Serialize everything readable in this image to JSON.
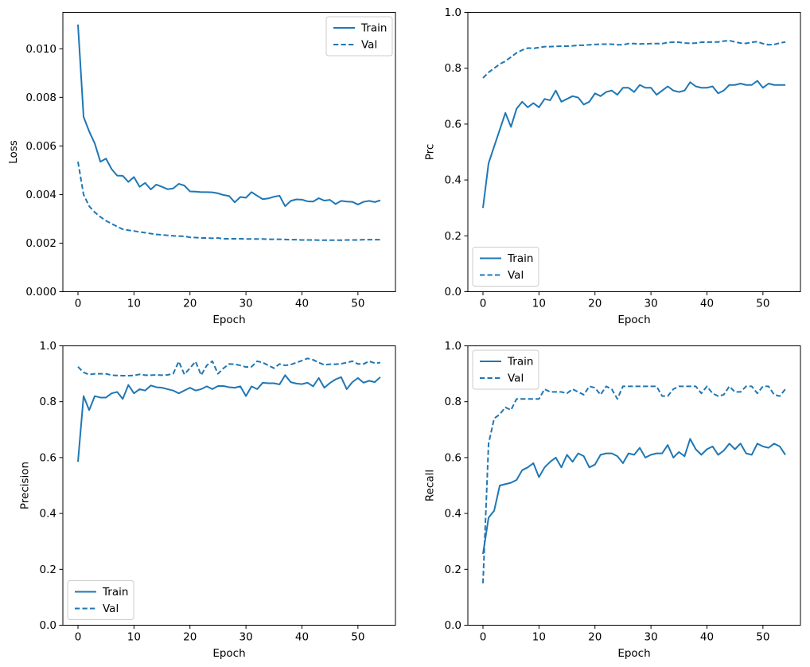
{
  "figure": {
    "background": "#ffffff",
    "line_color": "#1f77b4",
    "text_color": "#000000",
    "legend_labels": [
      "Train",
      "Val"
    ]
  },
  "epochs": [
    0,
    1,
    2,
    3,
    4,
    5,
    6,
    7,
    8,
    9,
    10,
    11,
    12,
    13,
    14,
    15,
    16,
    17,
    18,
    19,
    20,
    21,
    22,
    23,
    24,
    25,
    26,
    27,
    28,
    29,
    30,
    31,
    32,
    33,
    34,
    35,
    36,
    37,
    38,
    39,
    40,
    41,
    42,
    43,
    44,
    45,
    46,
    47,
    48,
    49,
    50,
    51,
    52,
    53,
    54
  ],
  "chart_data": [
    {
      "type": "line",
      "title": "",
      "xlabel": "Epoch",
      "ylabel": "Loss",
      "xlim": [
        -2.7,
        56.7
      ],
      "ylim": [
        0,
        0.0115
      ],
      "grid": false,
      "xticks": [
        0,
        10,
        20,
        30,
        40,
        50
      ],
      "xtick_labels": [
        "0",
        "10",
        "20",
        "30",
        "40",
        "50"
      ],
      "yticks": [
        0.0,
        0.002,
        0.004,
        0.006,
        0.008,
        0.01
      ],
      "ytick_labels": [
        "0.000",
        "0.002",
        "0.004",
        "0.006",
        "0.008",
        "0.010"
      ],
      "legend_position": "upper-right",
      "series": [
        {
          "name": "Train",
          "style": "solid",
          "values": [
            0.011,
            0.0072,
            0.0066,
            0.0061,
            0.00535,
            0.00548,
            0.00505,
            0.00478,
            0.00477,
            0.00452,
            0.00472,
            0.00432,
            0.00448,
            0.00421,
            0.00441,
            0.00432,
            0.00422,
            0.00425,
            0.00444,
            0.00437,
            0.00413,
            0.00412,
            0.0041,
            0.0041,
            0.00409,
            0.00405,
            0.00398,
            0.00394,
            0.00368,
            0.0039,
            0.00387,
            0.0041,
            0.00395,
            0.00381,
            0.00384,
            0.00391,
            0.00395,
            0.00352,
            0.00374,
            0.0038,
            0.00379,
            0.00372,
            0.00371,
            0.00385,
            0.00375,
            0.00378,
            0.00361,
            0.00374,
            0.00371,
            0.0037,
            0.00359,
            0.0037,
            0.00374,
            0.00369,
            0.00376
          ]
        },
        {
          "name": "Val",
          "style": "dashed",
          "values": [
            0.00535,
            0.004,
            0.00352,
            0.00327,
            0.00308,
            0.00292,
            0.0028,
            0.00268,
            0.00257,
            0.00253,
            0.0025,
            0.00246,
            0.00243,
            0.00239,
            0.00236,
            0.00234,
            0.00232,
            0.0023,
            0.00229,
            0.00228,
            0.00224,
            0.00223,
            0.00221,
            0.00221,
            0.0022,
            0.00221,
            0.00218,
            0.00218,
            0.00218,
            0.00218,
            0.00217,
            0.00217,
            0.00217,
            0.00217,
            0.00216,
            0.00216,
            0.00216,
            0.00215,
            0.00214,
            0.00214,
            0.00213,
            0.00213,
            0.00213,
            0.00212,
            0.00212,
            0.00212,
            0.00212,
            0.00212,
            0.00213,
            0.00213,
            0.00213,
            0.00214,
            0.00214,
            0.00214,
            0.00214
          ]
        }
      ]
    },
    {
      "type": "line",
      "title": "",
      "xlabel": "Epoch",
      "ylabel": "Prc",
      "xlim": [
        -2.7,
        56.7
      ],
      "ylim": [
        0,
        1.0
      ],
      "grid": false,
      "xticks": [
        0,
        10,
        20,
        30,
        40,
        50
      ],
      "xtick_labels": [
        "0",
        "10",
        "20",
        "30",
        "40",
        "50"
      ],
      "yticks": [
        0.0,
        0.2,
        0.4,
        0.6,
        0.8,
        1.0
      ],
      "ytick_labels": [
        "0.0",
        "0.2",
        "0.4",
        "0.6",
        "0.8",
        "1.0"
      ],
      "legend_position": "lower-left",
      "series": [
        {
          "name": "Train",
          "style": "solid",
          "values": [
            0.3,
            0.46,
            0.52,
            0.58,
            0.64,
            0.59,
            0.655,
            0.68,
            0.66,
            0.675,
            0.66,
            0.69,
            0.685,
            0.72,
            0.68,
            0.69,
            0.7,
            0.695,
            0.67,
            0.68,
            0.71,
            0.7,
            0.715,
            0.72,
            0.705,
            0.73,
            0.73,
            0.715,
            0.74,
            0.73,
            0.73,
            0.705,
            0.72,
            0.735,
            0.72,
            0.715,
            0.72,
            0.75,
            0.735,
            0.73,
            0.73,
            0.735,
            0.71,
            0.72,
            0.74,
            0.74,
            0.745,
            0.74,
            0.74,
            0.755,
            0.73,
            0.745,
            0.74,
            0.74,
            0.74
          ]
        },
        {
          "name": "Val",
          "style": "dashed",
          "values": [
            0.765,
            0.785,
            0.8,
            0.815,
            0.825,
            0.84,
            0.855,
            0.865,
            0.872,
            0.871,
            0.874,
            0.877,
            0.877,
            0.878,
            0.879,
            0.879,
            0.88,
            0.882,
            0.882,
            0.884,
            0.885,
            0.886,
            0.886,
            0.886,
            0.884,
            0.884,
            0.888,
            0.888,
            0.887,
            0.887,
            0.888,
            0.888,
            0.888,
            0.892,
            0.893,
            0.893,
            0.89,
            0.889,
            0.89,
            0.893,
            0.893,
            0.894,
            0.894,
            0.897,
            0.899,
            0.894,
            0.89,
            0.889,
            0.893,
            0.895,
            0.888,
            0.884,
            0.885,
            0.89,
            0.894
          ]
        }
      ]
    },
    {
      "type": "line",
      "title": "",
      "xlabel": "Epoch",
      "ylabel": "Precision",
      "xlim": [
        -2.7,
        56.7
      ],
      "ylim": [
        0,
        1.0
      ],
      "grid": false,
      "xticks": [
        0,
        10,
        20,
        30,
        40,
        50
      ],
      "xtick_labels": [
        "0",
        "10",
        "20",
        "30",
        "40",
        "50"
      ],
      "yticks": [
        0.0,
        0.2,
        0.4,
        0.6,
        0.8,
        1.0
      ],
      "ytick_labels": [
        "0.0",
        "0.2",
        "0.4",
        "0.6",
        "0.8",
        "1.0"
      ],
      "legend_position": "lower-left",
      "series": [
        {
          "name": "Train",
          "style": "solid",
          "values": [
            0.585,
            0.82,
            0.77,
            0.82,
            0.815,
            0.815,
            0.83,
            0.835,
            0.81,
            0.86,
            0.83,
            0.845,
            0.84,
            0.858,
            0.852,
            0.85,
            0.845,
            0.84,
            0.83,
            0.84,
            0.85,
            0.84,
            0.845,
            0.855,
            0.845,
            0.856,
            0.856,
            0.852,
            0.85,
            0.855,
            0.82,
            0.855,
            0.845,
            0.868,
            0.866,
            0.866,
            0.862,
            0.895,
            0.87,
            0.865,
            0.863,
            0.868,
            0.855,
            0.885,
            0.85,
            0.867,
            0.88,
            0.888,
            0.845,
            0.87,
            0.885,
            0.868,
            0.875,
            0.87,
            0.888
          ]
        },
        {
          "name": "Val",
          "style": "dashed",
          "values": [
            0.925,
            0.905,
            0.897,
            0.9,
            0.9,
            0.9,
            0.895,
            0.894,
            0.893,
            0.893,
            0.894,
            0.898,
            0.895,
            0.895,
            0.896,
            0.895,
            0.896,
            0.9,
            0.944,
            0.898,
            0.92,
            0.944,
            0.895,
            0.93,
            0.945,
            0.9,
            0.92,
            0.935,
            0.934,
            0.93,
            0.924,
            0.925,
            0.945,
            0.94,
            0.93,
            0.92,
            0.935,
            0.93,
            0.933,
            0.94,
            0.947,
            0.955,
            0.95,
            0.94,
            0.932,
            0.934,
            0.934,
            0.936,
            0.94,
            0.945,
            0.935,
            0.935,
            0.945,
            0.938,
            0.94
          ]
        }
      ]
    },
    {
      "type": "line",
      "title": "",
      "xlabel": "Epoch",
      "ylabel": "Recall",
      "xlim": [
        -2.7,
        56.7
      ],
      "ylim": [
        0,
        1.0
      ],
      "grid": false,
      "xticks": [
        0,
        10,
        20,
        30,
        40,
        50
      ],
      "xtick_labels": [
        "0",
        "10",
        "20",
        "30",
        "40",
        "50"
      ],
      "yticks": [
        0.0,
        0.2,
        0.4,
        0.6,
        0.8,
        1.0
      ],
      "ytick_labels": [
        "0.0",
        "0.2",
        "0.4",
        "0.6",
        "0.8",
        "1.0"
      ],
      "legend_position": "upper-left",
      "series": [
        {
          "name": "Train",
          "style": "solid",
          "values": [
            0.255,
            0.385,
            0.41,
            0.5,
            0.505,
            0.51,
            0.52,
            0.555,
            0.565,
            0.58,
            0.53,
            0.565,
            0.585,
            0.6,
            0.565,
            0.61,
            0.585,
            0.615,
            0.605,
            0.565,
            0.575,
            0.61,
            0.615,
            0.615,
            0.605,
            0.58,
            0.615,
            0.61,
            0.635,
            0.6,
            0.61,
            0.615,
            0.615,
            0.645,
            0.6,
            0.62,
            0.605,
            0.667,
            0.63,
            0.61,
            0.63,
            0.64,
            0.61,
            0.625,
            0.65,
            0.63,
            0.65,
            0.615,
            0.61,
            0.65,
            0.64,
            0.635,
            0.65,
            0.64,
            0.61
          ]
        },
        {
          "name": "Val",
          "style": "dashed",
          "values": [
            0.15,
            0.65,
            0.74,
            0.755,
            0.78,
            0.77,
            0.81,
            0.81,
            0.81,
            0.81,
            0.81,
            0.845,
            0.835,
            0.835,
            0.835,
            0.83,
            0.845,
            0.835,
            0.825,
            0.855,
            0.85,
            0.825,
            0.855,
            0.845,
            0.81,
            0.855,
            0.855,
            0.855,
            0.855,
            0.855,
            0.855,
            0.855,
            0.82,
            0.82,
            0.845,
            0.855,
            0.855,
            0.855,
            0.855,
            0.83,
            0.855,
            0.83,
            0.82,
            0.825,
            0.855,
            0.835,
            0.835,
            0.855,
            0.855,
            0.83,
            0.855,
            0.855,
            0.825,
            0.82,
            0.845
          ]
        }
      ]
    }
  ]
}
